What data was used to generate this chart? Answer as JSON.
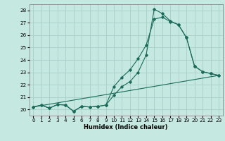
{
  "xlabel": "Humidex (Indice chaleur)",
  "xlim": [
    -0.5,
    23.5
  ],
  "ylim": [
    19.5,
    28.5
  ],
  "xticks": [
    0,
    1,
    2,
    3,
    4,
    5,
    6,
    7,
    8,
    9,
    10,
    11,
    12,
    13,
    14,
    15,
    16,
    17,
    18,
    19,
    20,
    21,
    22,
    23
  ],
  "yticks": [
    20,
    21,
    22,
    23,
    24,
    25,
    26,
    27,
    28
  ],
  "bg_color": "#c5e8e0",
  "grid_color": "#a8cfc7",
  "line_color": "#1a6b5a",
  "line1_x": [
    0,
    1,
    2,
    3,
    4,
    5,
    6,
    7,
    8,
    9,
    10,
    11,
    12,
    13,
    14,
    15,
    16,
    17,
    18,
    19,
    20,
    21,
    22,
    23
  ],
  "line1_y": [
    20.2,
    20.35,
    20.1,
    20.4,
    20.35,
    19.85,
    20.25,
    20.2,
    20.25,
    20.35,
    21.85,
    22.6,
    23.2,
    24.1,
    25.2,
    27.3,
    27.45,
    27.1,
    26.85,
    25.8,
    23.5,
    23.05,
    22.9,
    22.75
  ],
  "line2_x": [
    0,
    1,
    2,
    3,
    4,
    5,
    6,
    7,
    8,
    9,
    10,
    11,
    12,
    13,
    14,
    15,
    16,
    17,
    18,
    19,
    20,
    21,
    22,
    23
  ],
  "line2_y": [
    20.2,
    20.35,
    20.1,
    20.4,
    20.35,
    19.85,
    20.25,
    20.2,
    20.25,
    20.35,
    21.15,
    21.85,
    22.25,
    23.0,
    24.4,
    28.1,
    27.75,
    27.15,
    26.85,
    25.8,
    23.5,
    23.05,
    22.9,
    22.75
  ],
  "line3_x": [
    0,
    23
  ],
  "line3_y": [
    20.2,
    22.75
  ]
}
